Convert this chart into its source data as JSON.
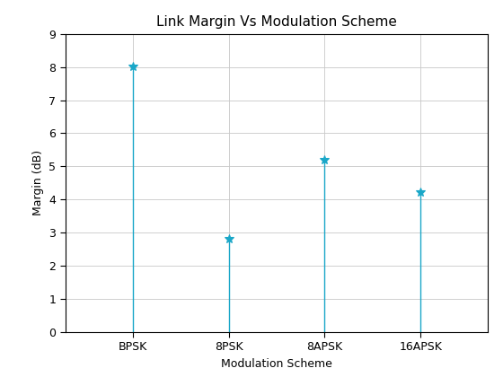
{
  "categories": [
    "BPSK",
    "8PSK",
    "8APSK",
    "16APSK"
  ],
  "values": [
    8.03,
    2.82,
    5.2,
    4.22
  ],
  "title": "Link Margin Vs Modulation Scheme",
  "xlabel": "Modulation Scheme",
  "ylabel": "Margin (dB)",
  "ylim": [
    0,
    9
  ],
  "yticks": [
    0,
    1,
    2,
    3,
    4,
    5,
    6,
    7,
    8,
    9
  ],
  "line_color": "#1aa7c8",
  "marker": "*",
  "marker_size": 7,
  "background_color": "#ffffff",
  "grid_color": "#c8c8c8",
  "title_fontsize": 11,
  "label_fontsize": 9,
  "tick_fontsize": 9
}
